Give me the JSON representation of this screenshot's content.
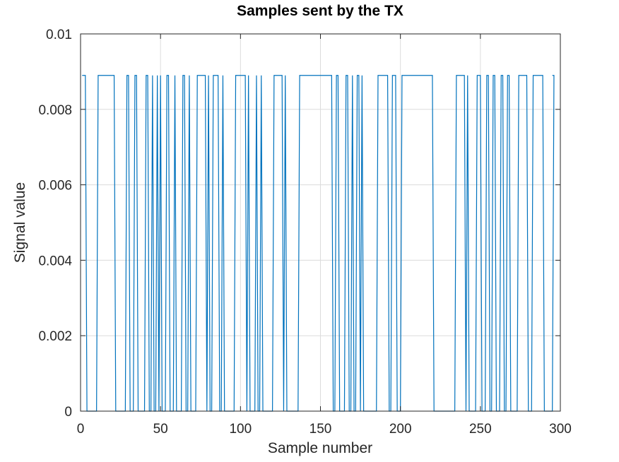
{
  "chart_data": {
    "type": "line",
    "title": "Samples sent by the TX",
    "xlabel": "Sample number",
    "ylabel": "Signal value",
    "xlim": [
      0,
      300
    ],
    "ylim": [
      0,
      0.01
    ],
    "xticks": [
      0,
      50,
      100,
      150,
      200,
      250,
      300
    ],
    "xtick_labels": [
      "0",
      "50",
      "100",
      "150",
      "200",
      "250",
      "300"
    ],
    "yticks": [
      0,
      0.002,
      0.004,
      0.006,
      0.008,
      0.01
    ],
    "ytick_labels": [
      "0",
      "0.002",
      "0.004",
      "0.006",
      "0.008",
      "0.01"
    ],
    "grid": true,
    "series": [
      {
        "color": "#0072bd",
        "high_value": 0.0089,
        "low_value": 0,
        "x_start": 1,
        "x_end": 295,
        "initial_level": "high",
        "transitions": [
          3,
          10,
          21,
          28,
          30,
          33,
          35,
          40,
          42,
          44,
          45,
          47,
          48,
          49,
          50,
          53,
          55,
          58,
          59,
          63,
          65,
          67,
          68,
          72,
          78,
          79,
          80,
          82,
          86,
          88,
          89,
          96,
          103,
          104,
          105,
          109,
          110,
          112,
          113,
          120,
          126,
          127,
          128,
          136,
          157,
          159,
          161,
          165,
          167,
          169,
          170,
          172,
          174,
          175,
          176,
          185,
          192,
          194,
          197,
          200,
          220,
          234,
          240,
          241,
          242,
          247,
          250,
          253,
          255,
          257,
          259,
          262,
          264,
          266,
          268,
          273,
          279,
          282,
          289,
          295
        ]
      }
    ]
  }
}
